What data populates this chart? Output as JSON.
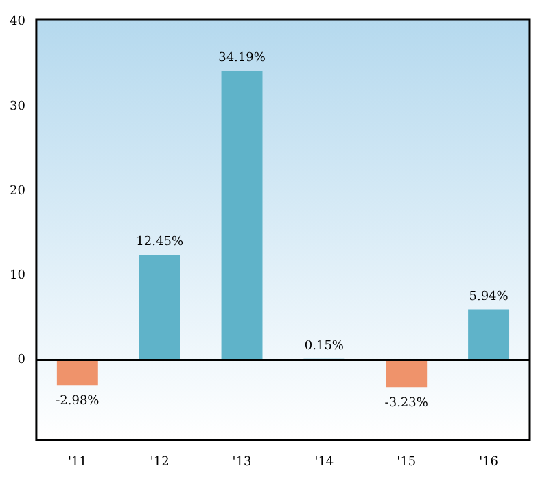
{
  "chart_data": {
    "type": "bar",
    "categories": [
      "'11",
      "'12",
      "'13",
      "'14",
      "'15",
      "'16"
    ],
    "values": [
      -2.98,
      12.45,
      34.19,
      0.15,
      -3.23,
      5.94
    ],
    "colors": [
      "#ef936b",
      "#5fb3c9",
      "#5fb3c9",
      "#5fb3c9",
      "#ef936b",
      "#5fb3c9"
    ],
    "value_labels": [
      "-2.98%",
      "12.45%",
      "34.19%",
      "0.15%",
      "-3.23%",
      "5.94%"
    ],
    "ylim": [
      -9.4,
      40.3
    ],
    "yticks": [
      0,
      10,
      20,
      30,
      40
    ],
    "ref_lines": [
      {
        "axis": "y",
        "value": 0,
        "color": "#000000"
      }
    ],
    "grid": false,
    "legend": false
  }
}
